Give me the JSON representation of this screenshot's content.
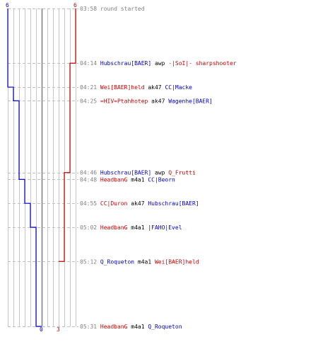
{
  "chart_data": {
    "type": "line",
    "subtype": "step",
    "y_axis": "time (mm:ss), top to bottom",
    "y_range": [
      "03:58",
      "05:31"
    ],
    "x_range": [
      0,
      6
    ],
    "grid": true,
    "colors": {
      "team_a": "#0000cc",
      "team_b": "#cc0000",
      "grid": "#c8c8c8",
      "center_line": "#7f7f7f",
      "dash": "#c0c0c0",
      "time": "#808080"
    },
    "series": [
      {
        "name": "",
        "color": "#0000cc",
        "start": 6,
        "end": 0,
        "start_label": "6",
        "end_label": "0",
        "steps": [
          {
            "time": "04:21",
            "value": 5
          },
          {
            "time": "04:25",
            "value": 4
          },
          {
            "time": "04:48",
            "value": 3
          },
          {
            "time": "04:55",
            "value": 2
          },
          {
            "time": "05:02",
            "value": 1
          },
          {
            "time": "05:31",
            "value": 0
          }
        ]
      },
      {
        "name": "",
        "color": "#cc0000",
        "start": 6,
        "end": 3,
        "start_label": "6",
        "end_label": "3",
        "steps": [
          {
            "time": "04:14",
            "value": 5
          },
          {
            "time": "04:46",
            "value": 4
          },
          {
            "time": "05:12",
            "value": 3
          }
        ]
      }
    ],
    "events": [
      {
        "time": "03:58",
        "parts": [
          {
            "text": "round started",
            "color": "#808080"
          }
        ]
      },
      {
        "time": "04:14",
        "parts": [
          {
            "text": "Hubschrau[BAER]",
            "color": "#0000cc"
          },
          {
            "text": " awp ",
            "color": "#000000"
          },
          {
            "text": "-|SoI|- sharpshooter",
            "color": "#cc0000"
          }
        ]
      },
      {
        "time": "04:21",
        "parts": [
          {
            "text": "Wei[BAER]held",
            "color": "#cc0000"
          },
          {
            "text": " ak47 ",
            "color": "#000000"
          },
          {
            "text": "CC|Macke",
            "color": "#0000cc"
          }
        ]
      },
      {
        "time": "04:25",
        "parts": [
          {
            "text": "=HIV=Ptahhotep",
            "color": "#cc0000"
          },
          {
            "text": " ak47 ",
            "color": "#000000"
          },
          {
            "text": "Wagenhe[BAER]",
            "color": "#0000cc"
          }
        ]
      },
      {
        "time": "04:46",
        "parts": [
          {
            "text": "Hubschrau[BAER]",
            "color": "#0000cc"
          },
          {
            "text": " awp ",
            "color": "#000000"
          },
          {
            "text": "Q_Frutti",
            "color": "#cc0000"
          }
        ]
      },
      {
        "time": "04:48",
        "parts": [
          {
            "text": "HeadbanG",
            "color": "#cc0000"
          },
          {
            "text": " m4a1 ",
            "color": "#000000"
          },
          {
            "text": "CC|Beorn",
            "color": "#0000cc"
          }
        ]
      },
      {
        "time": "04:55",
        "parts": [
          {
            "text": "CC|Duron",
            "color": "#cc0000"
          },
          {
            "text": " ak47 ",
            "color": "#000000"
          },
          {
            "text": "Hubschrau[BAER]",
            "color": "#0000cc"
          }
        ]
      },
      {
        "time": "05:02",
        "parts": [
          {
            "text": "HeadbanG",
            "color": "#cc0000"
          },
          {
            "text": " m4a1 ",
            "color": "#000000"
          },
          {
            "text": "|FAHO|Evel",
            "color": "#0000cc"
          }
        ]
      },
      {
        "time": "05:12",
        "parts": [
          {
            "text": "Q_Roqueton",
            "color": "#0000cc"
          },
          {
            "text": " m4a1 ",
            "color": "#000000"
          },
          {
            "text": "Wei[BAER]held",
            "color": "#cc0000"
          }
        ]
      },
      {
        "time": "05:31",
        "parts": [
          {
            "text": "HeadbanG",
            "color": "#cc0000"
          },
          {
            "text": " m4a1 ",
            "color": "#000000"
          },
          {
            "text": "Q_Roqueton",
            "color": "#0000cc"
          }
        ]
      }
    ]
  }
}
